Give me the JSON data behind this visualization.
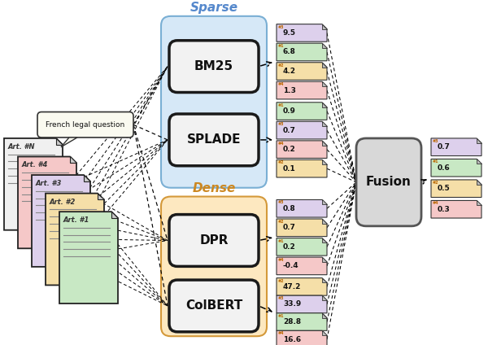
{
  "bg_color": "#ffffff",
  "sparse_box_color": "#d6e8f7",
  "sparse_border_color": "#7aafd4",
  "sparse_label_color": "#5588cc",
  "dense_box_color": "#fde8c0",
  "dense_border_color": "#d4993a",
  "dense_label_color": "#cc8822",
  "model_box_fill": "#f2f2f2",
  "model_box_border": "#1a1a1a",
  "fusion_box_fill": "#d8d8d8",
  "fusion_box_border": "#555555",
  "bm25_scores": [
    {
      "rank": "#3",
      "val": "9.5",
      "color": "#ddd0ec"
    },
    {
      "rank": "#1",
      "val": "6.8",
      "color": "#c8e8c4"
    },
    {
      "rank": "#2",
      "val": "4.2",
      "color": "#f5dfa8"
    },
    {
      "rank": "#4",
      "val": "1.3",
      "color": "#f5c8c8"
    }
  ],
  "splade_scores": [
    {
      "rank": "#1",
      "val": "0.9",
      "color": "#c8e8c4"
    },
    {
      "rank": "#3",
      "val": "0.7",
      "color": "#ddd0ec"
    },
    {
      "rank": "#4",
      "val": "0.2",
      "color": "#f5c8c8"
    },
    {
      "rank": "#2",
      "val": "0.1",
      "color": "#f5dfa8"
    }
  ],
  "dpr_scores": [
    {
      "rank": "#3",
      "val": "0.8",
      "color": "#ddd0ec"
    },
    {
      "rank": "#2",
      "val": "0.7",
      "color": "#f5dfa8"
    },
    {
      "rank": "#1",
      "val": "0.2",
      "color": "#c8e8c4"
    },
    {
      "rank": "#4",
      "val": "-0.4",
      "color": "#f5c8c8"
    }
  ],
  "colbert_scores": [
    {
      "rank": "#2",
      "val": "47.2",
      "color": "#f5dfa8"
    },
    {
      "rank": "#3",
      "val": "33.9",
      "color": "#ddd0ec"
    },
    {
      "rank": "#1",
      "val": "28.8",
      "color": "#c8e8c4"
    },
    {
      "rank": "#4",
      "val": "16.6",
      "color": "#f5c8c8"
    }
  ],
  "fusion_scores": [
    {
      "rank": "#3",
      "val": "0.7",
      "color": "#ddd0ec"
    },
    {
      "rank": "#1",
      "val": "0.6",
      "color": "#c8e8c4"
    },
    {
      "rank": "#2",
      "val": "0.5",
      "color": "#f5dfa8"
    },
    {
      "rank": "#4",
      "val": "0.3",
      "color": "#f5c8c8"
    }
  ],
  "doc_colors": [
    "#f0f0f0",
    "#f5c8c8",
    "#ddd0ec",
    "#f5dfa8",
    "#c8e8c4"
  ],
  "doc_labels": [
    "Art. #N",
    "Art. #4",
    "Art. #3",
    "Art. #2",
    "Art. #1"
  ]
}
